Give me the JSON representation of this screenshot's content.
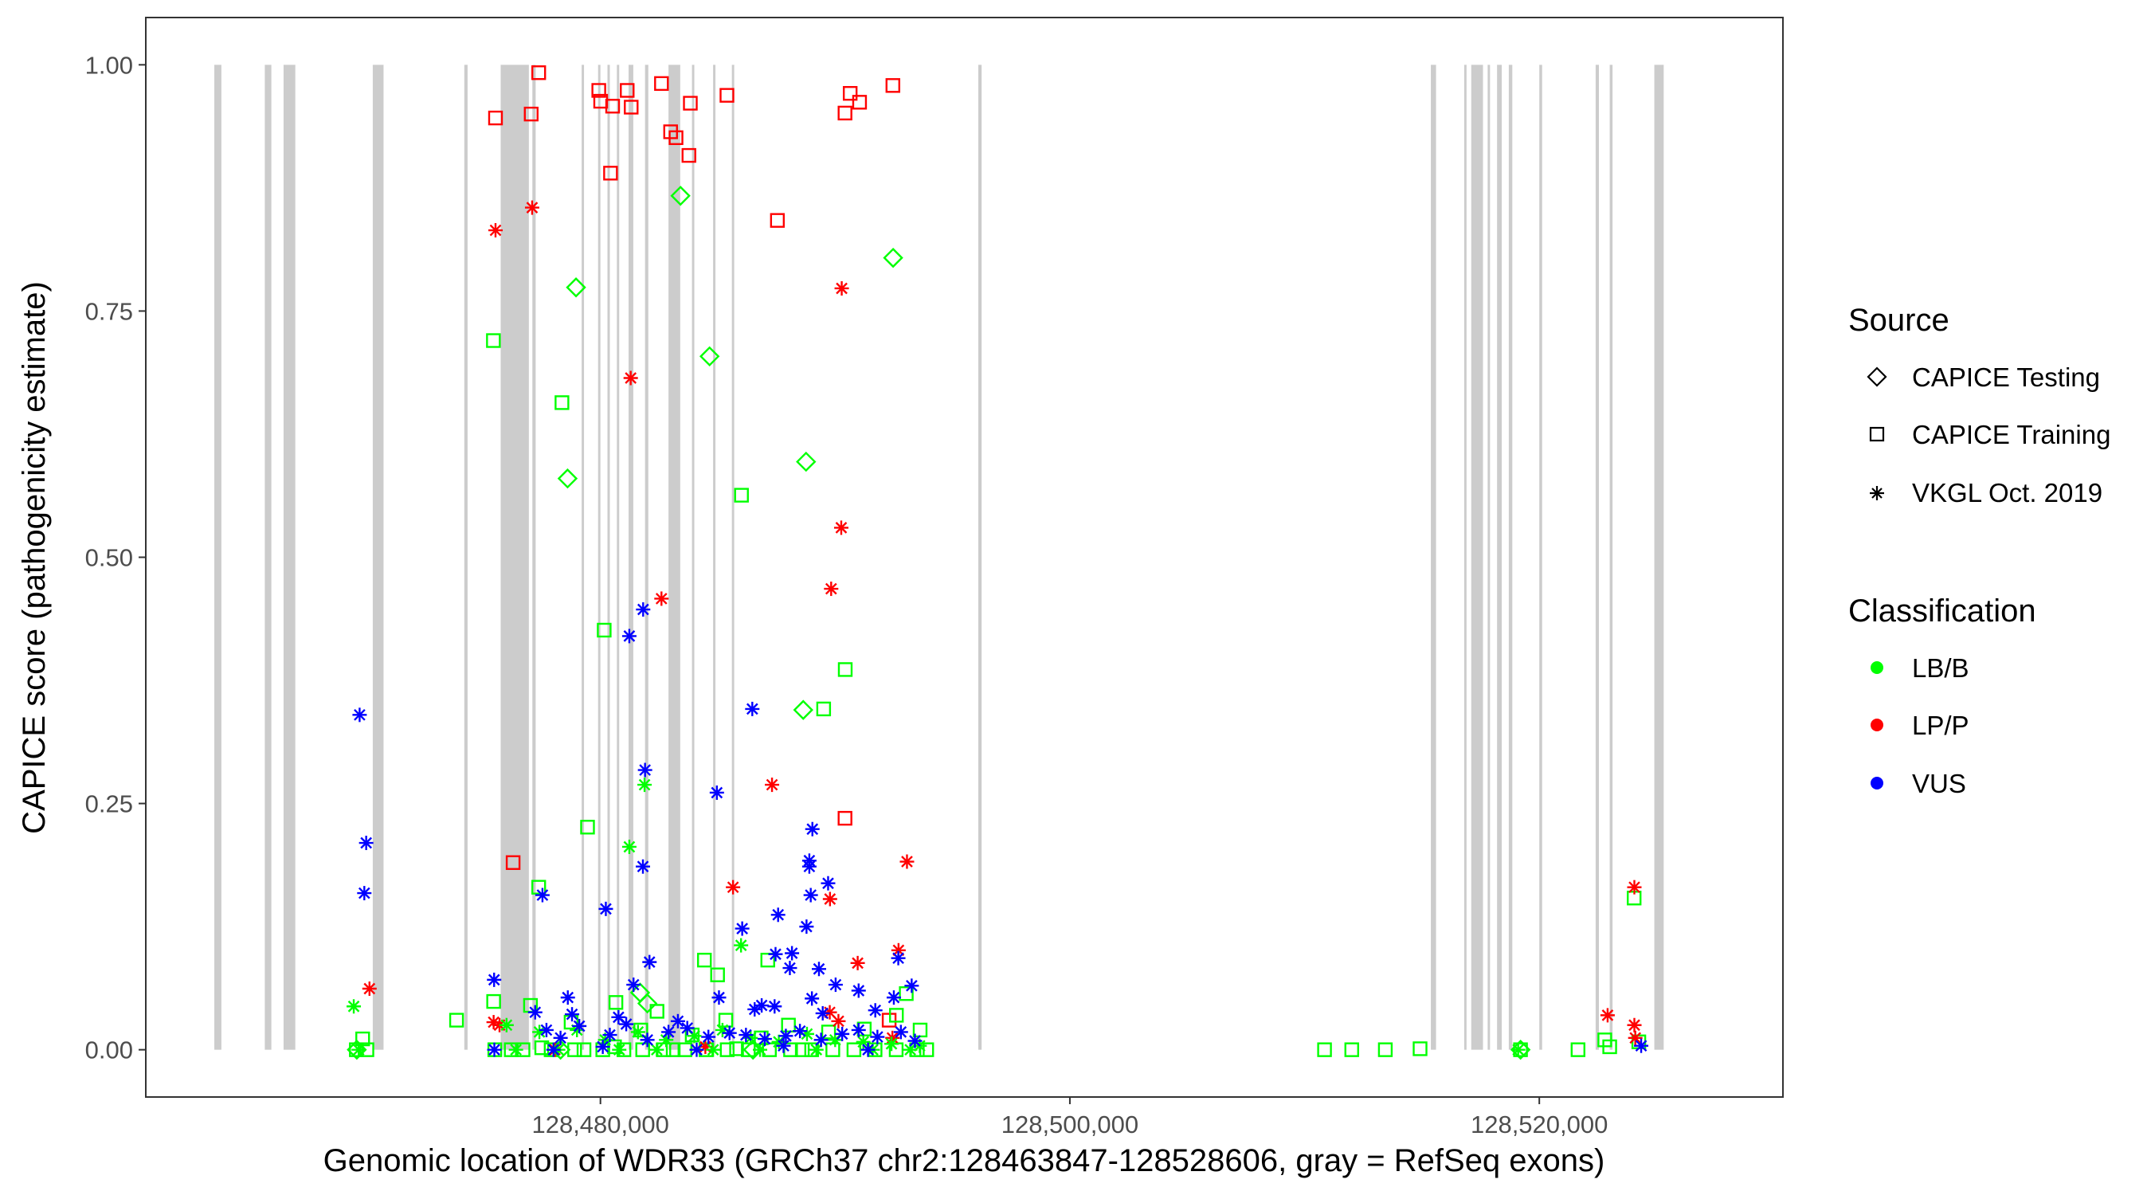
{
  "chart_data": {
    "type": "scatter",
    "title": "",
    "xlabel": "Genomic location of WDR33 (GRCh37 chr2:128463847-128528606, gray = RefSeq exons)",
    "ylabel": "CAPICE score (pathogenicity estimate)",
    "xlim": [
      128460630,
      128530380
    ],
    "ylim": [
      -0.048,
      1.048
    ],
    "x_ticks": [
      128480000,
      128500000,
      128520000
    ],
    "x_tick_labels": [
      "128,480,000",
      "128,500,000",
      "128,520,000"
    ],
    "y_ticks": [
      0.0,
      0.25,
      0.5,
      0.75,
      1.0
    ],
    "y_tick_labels": [
      "0.00",
      "0.25",
      "0.50",
      "0.75",
      "1.00"
    ],
    "colors": {
      "LB/B": "#00ff00",
      "LP/P": "#ff0000",
      "VUS": "#0000ff",
      "exon": "#cccccc"
    },
    "exons": [
      [
        128463550,
        128463850
      ],
      [
        128465700,
        128465980
      ],
      [
        128466500,
        128467000
      ],
      [
        128470300,
        128470760
      ],
      [
        128474200,
        128474340
      ],
      [
        128475750,
        128476950
      ],
      [
        128477100,
        128477240
      ],
      [
        128479200,
        128479300
      ],
      [
        128479900,
        128480000
      ],
      [
        128480300,
        128480400
      ],
      [
        128480700,
        128480800
      ],
      [
        128481200,
        128481400
      ],
      [
        128481900,
        128482040
      ],
      [
        128482900,
        128483400
      ],
      [
        128483900,
        128484000
      ],
      [
        128484800,
        128484900
      ],
      [
        128485600,
        128485700
      ],
      [
        128496100,
        128496240
      ],
      [
        128515380,
        128515600
      ],
      [
        128516800,
        128516900
      ],
      [
        128517100,
        128517600
      ],
      [
        128517800,
        128517900
      ],
      [
        128518200,
        128518400
      ],
      [
        128518700,
        128518850
      ],
      [
        128520000,
        128520120
      ],
      [
        128522400,
        128522540
      ],
      [
        128523000,
        128523120
      ],
      [
        128524900,
        128525300
      ]
    ],
    "legend": {
      "source_title": "Source",
      "source_items": [
        {
          "label": "CAPICE Testing",
          "shape": "diamond"
        },
        {
          "label": "CAPICE Training",
          "shape": "square"
        },
        {
          "label": "VKGL Oct. 2019",
          "shape": "star"
        }
      ],
      "class_title": "Classification",
      "class_items": [
        {
          "label": "LB/B",
          "color": "#00ff00"
        },
        {
          "label": "LP/P",
          "color": "#ff0000"
        },
        {
          "label": "VUS",
          "color": "#0000ff"
        }
      ]
    },
    "series": [
      {
        "name": "CAPICE Training / LP/P",
        "shape": "square",
        "color": "#ff0000",
        "points": [
          [
            128475530,
            0.946
          ],
          [
            128477370,
            0.992
          ],
          [
            128477050,
            0.95
          ],
          [
            128479930,
            0.974
          ],
          [
            128480010,
            0.963
          ],
          [
            128480520,
            0.958
          ],
          [
            128480430,
            0.89
          ],
          [
            128481140,
            0.974
          ],
          [
            128481310,
            0.957
          ],
          [
            128482600,
            0.981
          ],
          [
            128482990,
            0.932
          ],
          [
            128483220,
            0.926
          ],
          [
            128483830,
            0.961
          ],
          [
            128483770,
            0.908
          ],
          [
            128485390,
            0.969
          ],
          [
            128487540,
            0.842
          ],
          [
            128490420,
            0.951
          ],
          [
            128490640,
            0.971
          ],
          [
            128491040,
            0.962
          ],
          [
            128492460,
            0.979
          ],
          [
            128476280,
            0.19
          ],
          [
            128490420,
            0.235
          ],
          [
            128492300,
            0.03
          ]
        ]
      },
      {
        "name": "CAPICE Training / LB/B",
        "shape": "square",
        "color": "#00ff00",
        "points": [
          [
            128475440,
            0.72
          ],
          [
            128478360,
            0.657
          ],
          [
            128479450,
            0.226
          ],
          [
            128477370,
            0.165
          ],
          [
            128480160,
            0.426
          ],
          [
            128486010,
            0.563
          ],
          [
            128489510,
            0.346
          ],
          [
            128490430,
            0.386
          ],
          [
            128493030,
            0.057
          ],
          [
            128484430,
            0.091
          ],
          [
            128484990,
            0.076
          ],
          [
            128487130,
            0.091
          ],
          [
            128475450,
            0.049
          ],
          [
            128477020,
            0.045
          ],
          [
            128469870,
            0.011
          ],
          [
            128480660,
            0.048
          ],
          [
            128482410,
            0.039
          ],
          [
            128485340,
            0.03
          ],
          [
            128488010,
            0.025
          ],
          [
            128473870,
            0.03
          ],
          [
            128492610,
            0.035
          ],
          [
            128493620,
            0.02
          ],
          [
            128481720,
            0.02
          ],
          [
            128483910,
            0.015
          ],
          [
            128486850,
            0.012
          ],
          [
            128489720,
            0.018
          ],
          [
            128478750,
            0.028
          ],
          [
            128491240,
            0.021
          ],
          [
            128510850,
            0.0
          ],
          [
            128512010,
            0.0
          ],
          [
            128513440,
            0.0
          ],
          [
            128514920,
            0.001
          ],
          [
            128519200,
            0.0
          ],
          [
            128522790,
            0.01
          ],
          [
            128523000,
            0.003
          ],
          [
            128524040,
            0.154
          ],
          [
            128524240,
            0.008
          ],
          [
            128521650,
            0.0
          ],
          [
            128469600,
            0.0
          ],
          [
            128470050,
            0.0
          ],
          [
            128475500,
            0.0
          ],
          [
            128476700,
            0.0
          ],
          [
            128477900,
            0.0
          ],
          [
            128478900,
            0.0
          ],
          [
            128480100,
            0.0
          ],
          [
            128481000,
            0.0
          ],
          [
            128481800,
            0.0
          ],
          [
            128482700,
            0.0
          ],
          [
            128483600,
            0.0
          ],
          [
            128484500,
            0.0
          ],
          [
            128485400,
            0.0
          ],
          [
            128486300,
            0.0
          ],
          [
            128487200,
            0.0
          ],
          [
            128488100,
            0.0
          ],
          [
            128489000,
            0.0
          ],
          [
            128489900,
            0.0
          ],
          [
            128490800,
            0.0
          ],
          [
            128491700,
            0.0
          ],
          [
            128492600,
            0.0
          ],
          [
            128493500,
            0.0
          ],
          [
            128493900,
            0.0
          ],
          [
            128476200,
            0.0
          ],
          [
            128477500,
            0.002
          ],
          [
            128479300,
            0.0
          ],
          [
            128480600,
            0.003
          ],
          [
            128483100,
            0.0
          ],
          [
            128485800,
            0.001
          ],
          [
            128488600,
            0.0
          ]
        ]
      },
      {
        "name": "CAPICE Testing / LB/B",
        "shape": "diamond",
        "color": "#00ff00",
        "points": [
          [
            128483410,
            0.867
          ],
          [
            128492470,
            0.804
          ],
          [
            128478960,
            0.774
          ],
          [
            128484650,
            0.704
          ],
          [
            128478600,
            0.58
          ],
          [
            128488760,
            0.597
          ],
          [
            128488640,
            0.345
          ],
          [
            128481690,
            0.058
          ],
          [
            128482000,
            0.047
          ],
          [
            128469620,
            0.0
          ],
          [
            128478300,
            0.0
          ],
          [
            128486500,
            0.0
          ],
          [
            128519200,
            0.0
          ]
        ]
      },
      {
        "name": "VKGL Oct. 2019 / LP/P",
        "shape": "star",
        "color": "#ff0000",
        "points": [
          [
            128475530,
            0.832
          ],
          [
            128477090,
            0.855
          ],
          [
            128490280,
            0.773
          ],
          [
            128481290,
            0.682
          ],
          [
            128490260,
            0.53
          ],
          [
            128489830,
            0.468
          ],
          [
            128482600,
            0.458
          ],
          [
            128487310,
            0.269
          ],
          [
            128478060,
            0.0
          ],
          [
            128485650,
            0.165
          ],
          [
            128489780,
            0.153
          ],
          [
            128493060,
            0.191
          ],
          [
            128492700,
            0.101
          ],
          [
            128490960,
            0.088
          ],
          [
            128470160,
            0.062
          ],
          [
            128475450,
            0.028
          ],
          [
            128475700,
            0.025
          ],
          [
            128484470,
            0.003
          ],
          [
            128490140,
            0.029
          ],
          [
            128489770,
            0.038
          ],
          [
            128492440,
            0.012
          ],
          [
            128524050,
            0.165
          ],
          [
            128522910,
            0.035
          ],
          [
            128524050,
            0.025
          ],
          [
            128524090,
            0.012
          ]
        ]
      },
      {
        "name": "VKGL Oct. 2019 / LB/B",
        "shape": "star",
        "color": "#00ff00",
        "points": [
          [
            128469490,
            0.044
          ],
          [
            128481230,
            0.206
          ],
          [
            128481880,
            0.269
          ],
          [
            128485990,
            0.106
          ],
          [
            128476000,
            0.025
          ],
          [
            128477400,
            0.018
          ],
          [
            128479000,
            0.02
          ],
          [
            128480200,
            0.01
          ],
          [
            128481600,
            0.018
          ],
          [
            128482800,
            0.01
          ],
          [
            128484000,
            0.014
          ],
          [
            128485200,
            0.02
          ],
          [
            128486400,
            0.012
          ],
          [
            128487600,
            0.008
          ],
          [
            128488800,
            0.016
          ],
          [
            128490000,
            0.01
          ],
          [
            128491200,
            0.008
          ],
          [
            128492400,
            0.006
          ],
          [
            128493600,
            0.004
          ],
          [
            128469700,
            0.0
          ],
          [
            128476400,
            0.0
          ],
          [
            128478200,
            0.0
          ],
          [
            128480800,
            0.0
          ],
          [
            128482400,
            0.0
          ],
          [
            128484800,
            0.0
          ],
          [
            128486800,
            0.0
          ],
          [
            128489200,
            0.0
          ],
          [
            128491600,
            0.0
          ],
          [
            128493200,
            0.0
          ],
          [
            128519100,
            0.0
          ]
        ]
      },
      {
        "name": "VKGL Oct. 2019 / VUS",
        "shape": "star",
        "color": "#0000ff",
        "points": [
          [
            128469740,
            0.34
          ],
          [
            128470020,
            0.21
          ],
          [
            128469940,
            0.159
          ],
          [
            128481820,
            0.447
          ],
          [
            128481230,
            0.42
          ],
          [
            128486470,
            0.346
          ],
          [
            128481900,
            0.284
          ],
          [
            128481810,
            0.186
          ],
          [
            128484960,
            0.261
          ],
          [
            128488900,
            0.192
          ],
          [
            128489030,
            0.224
          ],
          [
            128488900,
            0.186
          ],
          [
            128477530,
            0.157
          ],
          [
            128480230,
            0.143
          ],
          [
            128489700,
            0.169
          ],
          [
            128488960,
            0.157
          ],
          [
            128482090,
            0.089
          ],
          [
            128486040,
            0.123
          ],
          [
            128487570,
            0.137
          ],
          [
            128488160,
            0.098
          ],
          [
            128487460,
            0.097
          ],
          [
            128488780,
            0.125
          ],
          [
            128488070,
            0.083
          ],
          [
            128489310,
            0.082
          ],
          [
            128490020,
            0.066
          ],
          [
            128475470,
            0.071
          ],
          [
            128478610,
            0.053
          ],
          [
            128481410,
            0.066
          ],
          [
            128489010,
            0.052
          ],
          [
            128491000,
            0.06
          ],
          [
            128492690,
            0.093
          ],
          [
            128492500,
            0.053
          ],
          [
            128491710,
            0.04
          ],
          [
            128486570,
            0.041
          ],
          [
            128478790,
            0.036
          ],
          [
            128477220,
            0.038
          ],
          [
            128480770,
            0.033
          ],
          [
            128483300,
            0.029
          ],
          [
            128485050,
            0.053
          ],
          [
            128486870,
            0.045
          ],
          [
            128489470,
            0.037
          ],
          [
            128487420,
            0.044
          ],
          [
            128493260,
            0.065
          ],
          [
            128477700,
            0.02
          ],
          [
            128478300,
            0.012
          ],
          [
            128479100,
            0.024
          ],
          [
            128480400,
            0.015
          ],
          [
            128481100,
            0.026
          ],
          [
            128482000,
            0.01
          ],
          [
            128482900,
            0.018
          ],
          [
            128483700,
            0.022
          ],
          [
            128484600,
            0.013
          ],
          [
            128485500,
            0.017
          ],
          [
            128486200,
            0.015
          ],
          [
            128487000,
            0.011
          ],
          [
            128487900,
            0.014
          ],
          [
            128488500,
            0.019
          ],
          [
            128489400,
            0.01
          ],
          [
            128490300,
            0.016
          ],
          [
            128491000,
            0.02
          ],
          [
            128491800,
            0.013
          ],
          [
            128492800,
            0.018
          ],
          [
            128493400,
            0.009
          ],
          [
            128475480,
            0.0
          ],
          [
            128478000,
            0.0
          ],
          [
            128480100,
            0.003
          ],
          [
            128484100,
            0.0
          ],
          [
            128487800,
            0.004
          ],
          [
            128491400,
            0.0
          ],
          [
            128524340,
            0.004
          ]
        ]
      }
    ]
  }
}
